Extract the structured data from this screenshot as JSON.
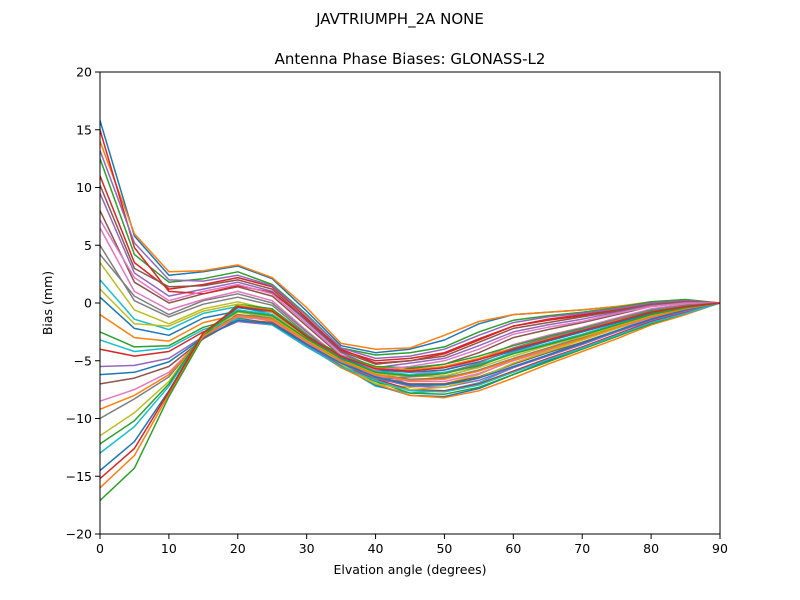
{
  "chart_data": {
    "type": "line",
    "suptitle": "JAVTRIUMPH_2A   NONE",
    "title": "Antenna Phase Biases: GLONASS-L2",
    "xlabel": "Elvation angle (degrees)",
    "ylabel": "Bias (mm)",
    "xlim": [
      0,
      90
    ],
    "ylim": [
      -20,
      20
    ],
    "xticks": [
      "0",
      "10",
      "20",
      "30",
      "40",
      "50",
      "60",
      "70",
      "80",
      "90"
    ],
    "yticks": [
      "20",
      "15",
      "10",
      "5",
      "0",
      "−5",
      "−10",
      "−15",
      "−20"
    ],
    "grid": false,
    "legend": "none",
    "x": [
      0,
      5,
      10,
      15,
      20,
      25,
      30,
      35,
      40,
      45,
      50,
      55,
      60,
      65,
      70,
      75,
      80,
      85,
      90
    ],
    "series": [
      {
        "values": [
          15.8,
          5.8,
          2.4,
          2.7,
          3.2,
          2.1,
          -0.7,
          -3.7,
          -4.3,
          -4.0,
          -3.2,
          -1.8,
          -1.0,
          -0.8,
          -0.6,
          -0.3,
          0.0,
          0.1,
          0.0
        ]
      },
      {
        "values": [
          14.0,
          6.0,
          2.7,
          2.8,
          3.3,
          2.2,
          -0.4,
          -3.5,
          -4.0,
          -3.9,
          -2.8,
          -1.6,
          -1.0,
          -0.8,
          -0.6,
          -0.3,
          0.1,
          0.2,
          0.0
        ]
      },
      {
        "values": [
          12.5,
          4.2,
          1.8,
          2.1,
          2.7,
          1.6,
          -1.0,
          -3.9,
          -4.5,
          -4.3,
          -3.8,
          -2.5,
          -1.5,
          -1.1,
          -0.8,
          -0.4,
          0.1,
          0.3,
          0.0
        ]
      },
      {
        "values": [
          11.0,
          3.5,
          1.2,
          1.6,
          2.2,
          1.4,
          -1.3,
          -4.1,
          -5.0,
          -4.8,
          -4.3,
          -3.1,
          -2.0,
          -1.5,
          -1.1,
          -0.6,
          -0.1,
          0.2,
          0.0
        ]
      },
      {
        "values": [
          9.5,
          2.6,
          0.6,
          1.2,
          1.8,
          1.0,
          -1.6,
          -4.3,
          -5.6,
          -5.2,
          -4.8,
          -3.7,
          -2.5,
          -1.9,
          -1.4,
          -0.8,
          -0.2,
          0.1,
          0.0
        ]
      },
      {
        "values": [
          8.0,
          1.8,
          0.0,
          0.8,
          1.4,
          0.6,
          -2.0,
          -4.6,
          -6.0,
          -5.7,
          -5.3,
          -4.3,
          -3.0,
          -2.3,
          -1.7,
          -1.0,
          -0.3,
          0.0,
          0.0
        ]
      },
      {
        "values": [
          6.5,
          1.0,
          -0.6,
          0.3,
          1.0,
          0.2,
          -2.4,
          -4.8,
          -6.4,
          -6.2,
          -5.8,
          -4.9,
          -3.6,
          -2.8,
          -2.1,
          -1.3,
          -0.5,
          -0.1,
          0.0
        ]
      },
      {
        "values": [
          5.0,
          0.2,
          -1.2,
          -0.1,
          0.5,
          -0.2,
          -2.7,
          -5.0,
          -6.8,
          -6.7,
          -6.4,
          -5.5,
          -4.2,
          -3.3,
          -2.5,
          -1.6,
          -0.7,
          -0.2,
          0.0
        ]
      },
      {
        "values": [
          3.5,
          -0.6,
          -1.8,
          -0.5,
          0.1,
          -0.6,
          -3.0,
          -5.2,
          -7.0,
          -7.3,
          -7.0,
          -6.2,
          -4.9,
          -3.9,
          -3.0,
          -2.0,
          -1.0,
          -0.4,
          0.0
        ]
      },
      {
        "values": [
          2.0,
          -1.4,
          -2.3,
          -0.9,
          -0.3,
          -1.0,
          -3.3,
          -5.4,
          -7.2,
          -7.8,
          -7.6,
          -6.9,
          -5.6,
          -4.5,
          -3.4,
          -2.4,
          -1.3,
          -0.6,
          0.0
        ]
      },
      {
        "values": [
          0.5,
          -2.2,
          -2.8,
          -1.3,
          -0.7,
          -1.4,
          -3.6,
          -5.5,
          -7.1,
          -8.0,
          -8.1,
          -7.4,
          -6.2,
          -5.0,
          -3.9,
          -2.8,
          -1.6,
          -0.8,
          0.0
        ]
      },
      {
        "values": [
          -1.0,
          -3.0,
          -3.3,
          -1.7,
          -1.0,
          -1.6,
          -3.7,
          -5.6,
          -7.0,
          -8.0,
          -8.2,
          -7.6,
          -6.5,
          -5.3,
          -4.2,
          -3.1,
          -1.9,
          -1.0,
          0.0
        ]
      },
      {
        "values": [
          -2.5,
          -3.8,
          -3.7,
          -2.1,
          -1.3,
          -1.8,
          -3.8,
          -5.5,
          -6.8,
          -7.8,
          -7.9,
          -7.3,
          -6.2,
          -5.1,
          -4.0,
          -2.9,
          -1.8,
          -0.9,
          0.0
        ]
      },
      {
        "values": [
          -4.0,
          -4.6,
          -4.2,
          -2.5,
          -1.5,
          -1.9,
          -3.8,
          -5.4,
          -6.6,
          -7.5,
          -7.6,
          -7.0,
          -5.9,
          -4.8,
          -3.8,
          -2.7,
          -1.6,
          -0.8,
          0.0
        ]
      },
      {
        "values": [
          -5.5,
          -5.4,
          -4.8,
          -2.9,
          -1.6,
          -1.9,
          -3.7,
          -5.3,
          -6.5,
          -7.2,
          -7.3,
          -6.7,
          -5.6,
          -4.6,
          -3.6,
          -2.5,
          -1.5,
          -0.7,
          0.0
        ]
      },
      {
        "values": [
          -7.0,
          -6.5,
          -5.5,
          -3.1,
          -1.4,
          -1.7,
          -3.5,
          -5.2,
          -6.4,
          -7.0,
          -7.0,
          -6.4,
          -5.3,
          -4.3,
          -3.4,
          -2.4,
          -1.4,
          -0.6,
          0.0
        ]
      },
      {
        "values": [
          -8.5,
          -7.5,
          -6.0,
          -3.0,
          -1.2,
          -1.5,
          -3.4,
          -5.1,
          -6.3,
          -6.8,
          -6.8,
          -6.1,
          -5.0,
          -4.1,
          -3.2,
          -2.2,
          -1.3,
          -0.6,
          0.0
        ]
      },
      {
        "values": [
          -10.0,
          -8.3,
          -6.4,
          -2.8,
          -1.0,
          -1.3,
          -3.3,
          -5.0,
          -6.2,
          -6.6,
          -6.5,
          -5.8,
          -4.8,
          -3.9,
          -3.0,
          -2.1,
          -1.2,
          -0.5,
          0.0
        ]
      },
      {
        "values": [
          -11.5,
          -9.5,
          -6.8,
          -2.7,
          -0.8,
          -1.2,
          -3.2,
          -4.9,
          -6.1,
          -6.4,
          -6.3,
          -5.6,
          -4.6,
          -3.7,
          -2.9,
          -2.0,
          -1.1,
          -0.5,
          0.0
        ]
      },
      {
        "values": [
          -13.0,
          -10.7,
          -7.2,
          -2.6,
          -0.6,
          -1.0,
          -3.1,
          -4.8,
          -5.9,
          -6.2,
          -6.0,
          -5.3,
          -4.3,
          -3.5,
          -2.7,
          -1.8,
          -1.0,
          -0.4,
          0.0
        ]
      },
      {
        "values": [
          -14.5,
          -12.0,
          -7.6,
          -2.6,
          -0.4,
          -0.8,
          -3.0,
          -4.7,
          -5.8,
          -6.0,
          -5.8,
          -5.1,
          -4.1,
          -3.3,
          -2.5,
          -1.7,
          -0.9,
          -0.4,
          0.0
        ]
      },
      {
        "values": [
          -16.0,
          -13.2,
          -7.9,
          -2.7,
          -0.2,
          -0.6,
          -2.9,
          -4.6,
          -5.6,
          -5.8,
          -5.5,
          -4.8,
          -3.9,
          -3.1,
          -2.3,
          -1.5,
          -0.8,
          -0.3,
          0.0
        ]
      },
      {
        "values": [
          -17.1,
          -14.3,
          -8.1,
          -2.9,
          -0.1,
          -0.5,
          -2.8,
          -4.5,
          -5.5,
          -5.6,
          -5.3,
          -4.6,
          -3.7,
          -2.9,
          -2.2,
          -1.4,
          -0.7,
          -0.3,
          0.0
        ]
      },
      {
        "values": [
          15.0,
          4.8,
          1.0,
          0.8,
          1.5,
          0.9,
          -1.4,
          -4.0,
          -5.2,
          -5.0,
          -4.4,
          -3.2,
          -2.0,
          -1.4,
          -1.0,
          -0.5,
          0.0,
          0.2,
          0.0
        ]
      },
      {
        "values": [
          13.2,
          5.2,
          2.0,
          1.9,
          2.4,
          1.5,
          -1.1,
          -3.9,
          -4.8,
          -4.6,
          -4.0,
          -2.8,
          -1.7,
          -1.2,
          -0.9,
          -0.5,
          0.0,
          0.2,
          0.0
        ]
      },
      {
        "values": [
          10.2,
          3.0,
          1.4,
          1.5,
          2.0,
          1.2,
          -1.5,
          -4.2,
          -5.3,
          -5.0,
          -4.6,
          -3.4,
          -2.2,
          -1.7,
          -1.2,
          -0.7,
          -0.1,
          0.1,
          0.0
        ]
      },
      {
        "values": [
          7.2,
          2.2,
          0.2,
          1.0,
          1.6,
          0.8,
          -1.8,
          -4.5,
          -5.8,
          -5.5,
          -5.0,
          -4.0,
          -2.7,
          -2.1,
          -1.6,
          -0.9,
          -0.3,
          0.0,
          0.0
        ]
      },
      {
        "values": [
          4.2,
          0.6,
          -1.0,
          0.2,
          0.8,
          0.0,
          -2.5,
          -4.9,
          -6.6,
          -6.4,
          -6.1,
          -5.2,
          -3.9,
          -3.0,
          -2.3,
          -1.4,
          -0.6,
          -0.2,
          0.0
        ]
      },
      {
        "values": [
          1.2,
          -1.8,
          -2.0,
          -0.7,
          -0.1,
          -0.8,
          -3.1,
          -5.3,
          -7.0,
          -7.5,
          -7.3,
          -6.5,
          -5.2,
          -4.2,
          -3.2,
          -2.2,
          -1.1,
          -0.5,
          0.0
        ]
      },
      {
        "values": [
          -3.2,
          -4.2,
          -3.9,
          -2.3,
          -1.4,
          -1.9,
          -3.8,
          -5.5,
          -6.7,
          -7.6,
          -7.7,
          -7.1,
          -6.0,
          -4.9,
          -3.9,
          -2.8,
          -1.7,
          -0.9,
          0.0
        ]
      },
      {
        "values": [
          -6.2,
          -6.0,
          -5.1,
          -3.0,
          -1.5,
          -1.8,
          -3.6,
          -5.2,
          -6.4,
          -7.1,
          -7.1,
          -6.5,
          -5.5,
          -4.5,
          -3.5,
          -2.4,
          -1.4,
          -0.6,
          0.0
        ]
      },
      {
        "values": [
          -9.2,
          -8.0,
          -6.2,
          -2.9,
          -1.1,
          -1.4,
          -3.3,
          -5.0,
          -6.2,
          -6.7,
          -6.6,
          -5.9,
          -4.9,
          -4.0,
          -3.1,
          -2.1,
          -1.2,
          -0.5,
          0.0
        ]
      },
      {
        "values": [
          -12.2,
          -10.2,
          -7.0,
          -2.6,
          -0.7,
          -1.1,
          -3.1,
          -4.8,
          -6.0,
          -6.3,
          -6.1,
          -5.4,
          -4.4,
          -3.6,
          -2.8,
          -1.9,
          -1.0,
          -0.4,
          0.0
        ]
      },
      {
        "values": [
          -15.2,
          -12.6,
          -7.7,
          -2.6,
          -0.3,
          -0.7,
          -2.9,
          -4.6,
          -5.7,
          -5.9,
          -5.6,
          -4.9,
          -4.0,
          -3.2,
          -2.4,
          -1.6,
          -0.8,
          -0.3,
          0.0
        ]
      }
    ]
  }
}
